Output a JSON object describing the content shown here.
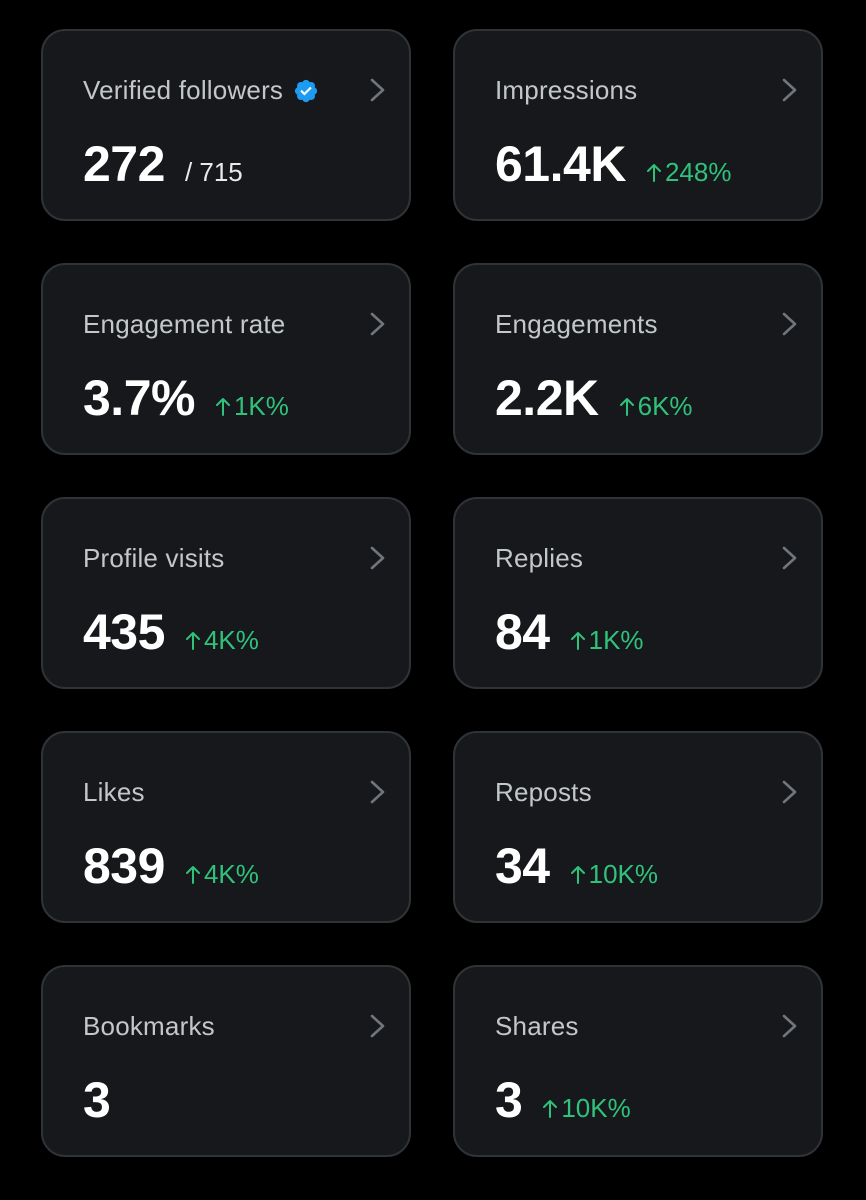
{
  "colors": {
    "background": "#000000",
    "card": "#16181c",
    "border": "#2f3336",
    "label": "#c4c7ca",
    "value": "#ffffff",
    "positive": "#2fc27b",
    "verified": "#1d9bf0"
  },
  "icons": {
    "verified": "verified-badge-icon",
    "chevron": "chevron-right-icon",
    "change": "arrow-up-icon"
  },
  "cards": [
    {
      "label": "Verified followers",
      "value": "272",
      "total": "/ 715",
      "change": "",
      "verified": true
    },
    {
      "label": "Impressions",
      "value": "61.4K",
      "total": "",
      "change": "248%"
    },
    {
      "label": "Engagement rate",
      "value": "3.7%",
      "total": "",
      "change": "1K%"
    },
    {
      "label": "Engagements",
      "value": "2.2K",
      "total": "",
      "change": "6K%"
    },
    {
      "label": "Profile visits",
      "value": "435",
      "total": "",
      "change": "4K%"
    },
    {
      "label": "Replies",
      "value": "84",
      "total": "",
      "change": "1K%"
    },
    {
      "label": "Likes",
      "value": "839",
      "total": "",
      "change": "4K%"
    },
    {
      "label": "Reposts",
      "value": "34",
      "total": "",
      "change": "10K%"
    },
    {
      "label": "Bookmarks",
      "value": "3",
      "total": "",
      "change": ""
    },
    {
      "label": "Shares",
      "value": "3",
      "total": "",
      "change": "10K%"
    }
  ]
}
